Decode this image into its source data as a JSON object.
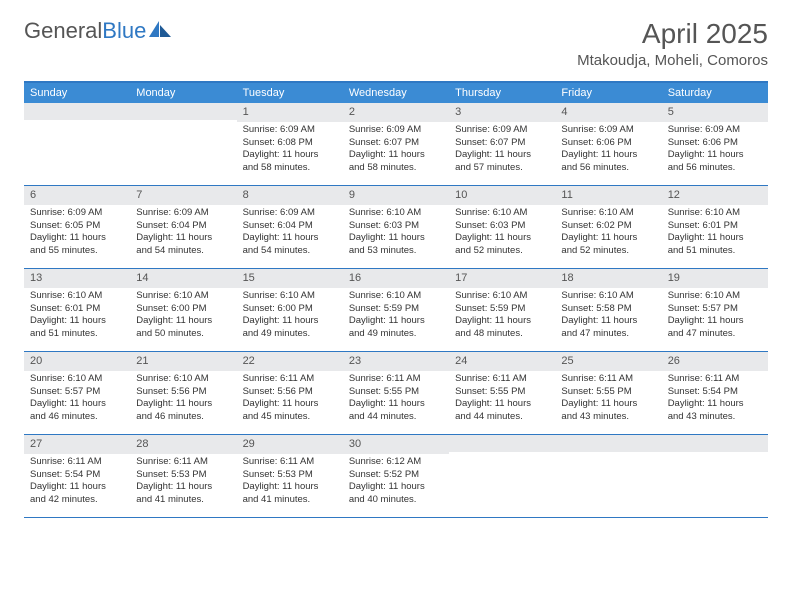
{
  "logo": {
    "text1": "General",
    "text2": "Blue"
  },
  "title": "April 2025",
  "location": "Mtakoudja, Moheli, Comoros",
  "colors": {
    "header_bg": "#3b8bd4",
    "header_text": "#ffffff",
    "border": "#2f78c3",
    "daynum_bg": "#e8e9eb",
    "text": "#333333",
    "title_text": "#555555"
  },
  "day_headers": [
    "Sunday",
    "Monday",
    "Tuesday",
    "Wednesday",
    "Thursday",
    "Friday",
    "Saturday"
  ],
  "weeks": [
    [
      {
        "blank": true
      },
      {
        "blank": true
      },
      {
        "day": "1",
        "sunrise": "Sunrise: 6:09 AM",
        "sunset": "Sunset: 6:08 PM",
        "daylight": "Daylight: 11 hours and 58 minutes."
      },
      {
        "day": "2",
        "sunrise": "Sunrise: 6:09 AM",
        "sunset": "Sunset: 6:07 PM",
        "daylight": "Daylight: 11 hours and 58 minutes."
      },
      {
        "day": "3",
        "sunrise": "Sunrise: 6:09 AM",
        "sunset": "Sunset: 6:07 PM",
        "daylight": "Daylight: 11 hours and 57 minutes."
      },
      {
        "day": "4",
        "sunrise": "Sunrise: 6:09 AM",
        "sunset": "Sunset: 6:06 PM",
        "daylight": "Daylight: 11 hours and 56 minutes."
      },
      {
        "day": "5",
        "sunrise": "Sunrise: 6:09 AM",
        "sunset": "Sunset: 6:06 PM",
        "daylight": "Daylight: 11 hours and 56 minutes."
      }
    ],
    [
      {
        "day": "6",
        "sunrise": "Sunrise: 6:09 AM",
        "sunset": "Sunset: 6:05 PM",
        "daylight": "Daylight: 11 hours and 55 minutes."
      },
      {
        "day": "7",
        "sunrise": "Sunrise: 6:09 AM",
        "sunset": "Sunset: 6:04 PM",
        "daylight": "Daylight: 11 hours and 54 minutes."
      },
      {
        "day": "8",
        "sunrise": "Sunrise: 6:09 AM",
        "sunset": "Sunset: 6:04 PM",
        "daylight": "Daylight: 11 hours and 54 minutes."
      },
      {
        "day": "9",
        "sunrise": "Sunrise: 6:10 AM",
        "sunset": "Sunset: 6:03 PM",
        "daylight": "Daylight: 11 hours and 53 minutes."
      },
      {
        "day": "10",
        "sunrise": "Sunrise: 6:10 AM",
        "sunset": "Sunset: 6:03 PM",
        "daylight": "Daylight: 11 hours and 52 minutes."
      },
      {
        "day": "11",
        "sunrise": "Sunrise: 6:10 AM",
        "sunset": "Sunset: 6:02 PM",
        "daylight": "Daylight: 11 hours and 52 minutes."
      },
      {
        "day": "12",
        "sunrise": "Sunrise: 6:10 AM",
        "sunset": "Sunset: 6:01 PM",
        "daylight": "Daylight: 11 hours and 51 minutes."
      }
    ],
    [
      {
        "day": "13",
        "sunrise": "Sunrise: 6:10 AM",
        "sunset": "Sunset: 6:01 PM",
        "daylight": "Daylight: 11 hours and 51 minutes."
      },
      {
        "day": "14",
        "sunrise": "Sunrise: 6:10 AM",
        "sunset": "Sunset: 6:00 PM",
        "daylight": "Daylight: 11 hours and 50 minutes."
      },
      {
        "day": "15",
        "sunrise": "Sunrise: 6:10 AM",
        "sunset": "Sunset: 6:00 PM",
        "daylight": "Daylight: 11 hours and 49 minutes."
      },
      {
        "day": "16",
        "sunrise": "Sunrise: 6:10 AM",
        "sunset": "Sunset: 5:59 PM",
        "daylight": "Daylight: 11 hours and 49 minutes."
      },
      {
        "day": "17",
        "sunrise": "Sunrise: 6:10 AM",
        "sunset": "Sunset: 5:59 PM",
        "daylight": "Daylight: 11 hours and 48 minutes."
      },
      {
        "day": "18",
        "sunrise": "Sunrise: 6:10 AM",
        "sunset": "Sunset: 5:58 PM",
        "daylight": "Daylight: 11 hours and 47 minutes."
      },
      {
        "day": "19",
        "sunrise": "Sunrise: 6:10 AM",
        "sunset": "Sunset: 5:57 PM",
        "daylight": "Daylight: 11 hours and 47 minutes."
      }
    ],
    [
      {
        "day": "20",
        "sunrise": "Sunrise: 6:10 AM",
        "sunset": "Sunset: 5:57 PM",
        "daylight": "Daylight: 11 hours and 46 minutes."
      },
      {
        "day": "21",
        "sunrise": "Sunrise: 6:10 AM",
        "sunset": "Sunset: 5:56 PM",
        "daylight": "Daylight: 11 hours and 46 minutes."
      },
      {
        "day": "22",
        "sunrise": "Sunrise: 6:11 AM",
        "sunset": "Sunset: 5:56 PM",
        "daylight": "Daylight: 11 hours and 45 minutes."
      },
      {
        "day": "23",
        "sunrise": "Sunrise: 6:11 AM",
        "sunset": "Sunset: 5:55 PM",
        "daylight": "Daylight: 11 hours and 44 minutes."
      },
      {
        "day": "24",
        "sunrise": "Sunrise: 6:11 AM",
        "sunset": "Sunset: 5:55 PM",
        "daylight": "Daylight: 11 hours and 44 minutes."
      },
      {
        "day": "25",
        "sunrise": "Sunrise: 6:11 AM",
        "sunset": "Sunset: 5:55 PM",
        "daylight": "Daylight: 11 hours and 43 minutes."
      },
      {
        "day": "26",
        "sunrise": "Sunrise: 6:11 AM",
        "sunset": "Sunset: 5:54 PM",
        "daylight": "Daylight: 11 hours and 43 minutes."
      }
    ],
    [
      {
        "day": "27",
        "sunrise": "Sunrise: 6:11 AM",
        "sunset": "Sunset: 5:54 PM",
        "daylight": "Daylight: 11 hours and 42 minutes."
      },
      {
        "day": "28",
        "sunrise": "Sunrise: 6:11 AM",
        "sunset": "Sunset: 5:53 PM",
        "daylight": "Daylight: 11 hours and 41 minutes."
      },
      {
        "day": "29",
        "sunrise": "Sunrise: 6:11 AM",
        "sunset": "Sunset: 5:53 PM",
        "daylight": "Daylight: 11 hours and 41 minutes."
      },
      {
        "day": "30",
        "sunrise": "Sunrise: 6:12 AM",
        "sunset": "Sunset: 5:52 PM",
        "daylight": "Daylight: 11 hours and 40 minutes."
      },
      {
        "blank": true
      },
      {
        "blank": true
      },
      {
        "blank": true
      }
    ]
  ]
}
